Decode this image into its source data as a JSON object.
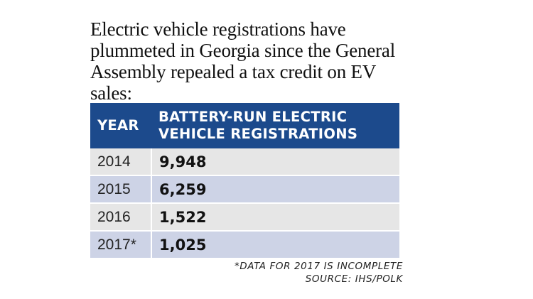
{
  "intro": "Electric vehicle registrations have plummeted in Georgia since the General Assembly repealed a tax credit on EV sales:",
  "table": {
    "header_bg": "#1c4a8c",
    "row_colors": [
      "#e6e6e6",
      "#cdd3e6"
    ],
    "columns": [
      "YEAR",
      "BATTERY-RUN ELECTRIC VEHICLE REGISTRATIONS"
    ],
    "rows": [
      {
        "year": "2014",
        "value": "9,948"
      },
      {
        "year": "2015",
        "value": "6,259"
      },
      {
        "year": "2016",
        "value": "1,522"
      },
      {
        "year": "2017*",
        "value": "1,025"
      }
    ]
  },
  "notes": {
    "footnote": "*DATA FOR 2017 IS INCOMPLETE",
    "source": "SOURCE: IHS/POLK"
  },
  "chart_data": {
    "type": "table",
    "title": "Electric vehicle registrations have plummeted in Georgia since the General Assembly repealed a tax credit on EV sales:",
    "columns": [
      "YEAR",
      "BATTERY-RUN ELECTRIC VEHICLE REGISTRATIONS"
    ],
    "categories": [
      "2014",
      "2015",
      "2016",
      "2017*"
    ],
    "values": [
      9948,
      6259,
      1522,
      1025
    ]
  }
}
